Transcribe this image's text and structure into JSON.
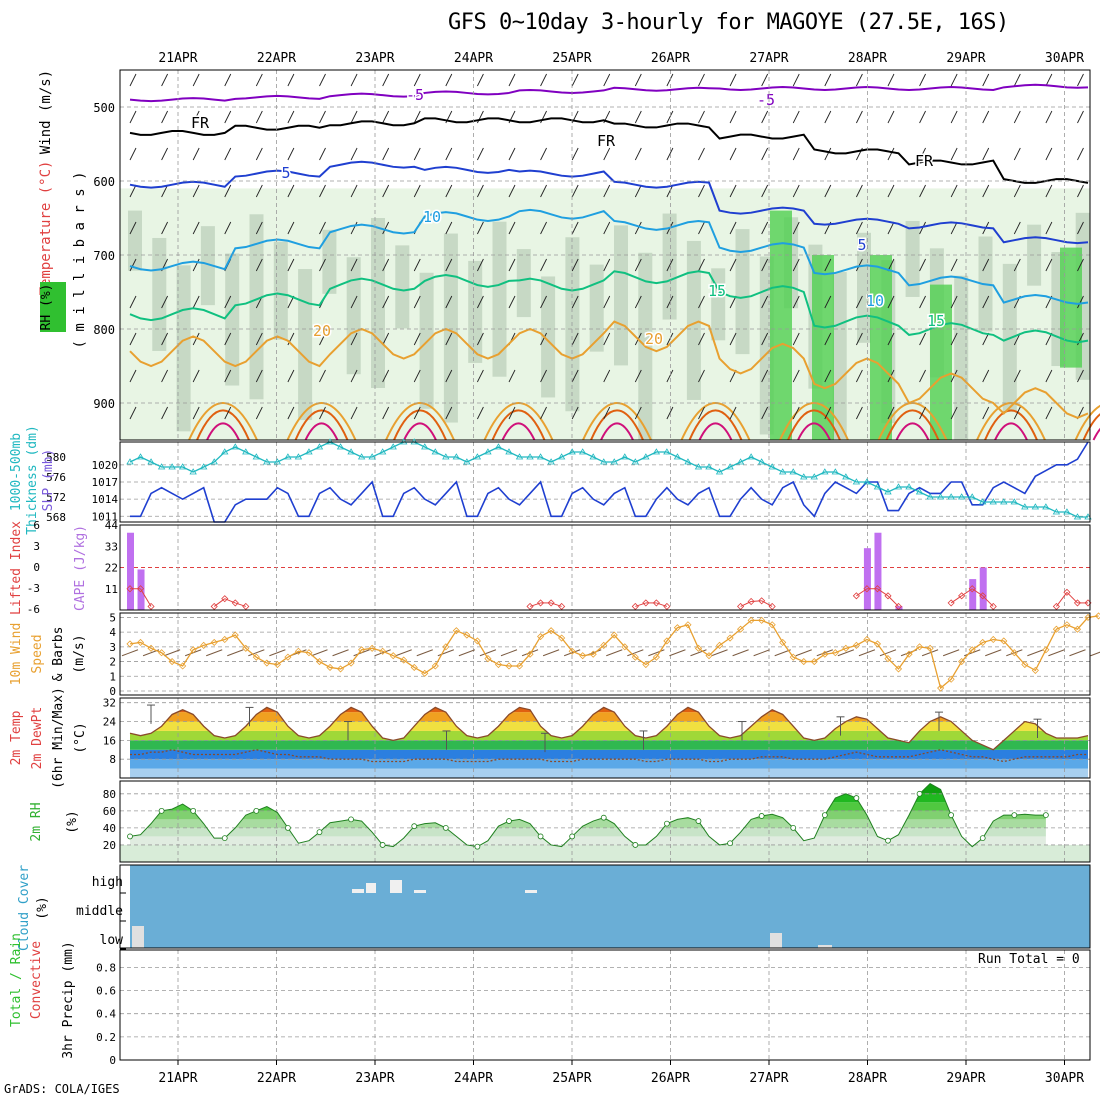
{
  "title": "GFS 0~10day 3-hourly for MAGOYE (27.5E, 16S)",
  "footer": "GrADS: COLA/IGES",
  "dates": [
    "21APR",
    "22APR",
    "23APR",
    "24APR",
    "25APR",
    "26APR",
    "27APR",
    "28APR",
    "29APR",
    "30APR"
  ],
  "colors": {
    "purple": "#8000c0",
    "black": "#000000",
    "blue": "#1f3fd0",
    "lightblue": "#1f9fe0",
    "teal": "#10c080",
    "orange": "#e8a030",
    "darkorange": "#e06010",
    "magenta": "#d0107a",
    "cyan": "#20b8c0",
    "slpblue": "#1f3fd0",
    "cape": "#c070f0",
    "li": "#e04040",
    "wind": "#e8a030",
    "rh": "#30c830",
    "cloud": "#6aaed6"
  },
  "chart_data": [
    {
      "type": "heatmap",
      "name_label": "upper-air",
      "ylabel_wind": "Wind (m/s)",
      "ylabel_temp": "Temperature (°C)",
      "ylabel_rh": "RH (%)",
      "ylabel_p": "( m i l l i b a r s )",
      "yticks": [
        500,
        600,
        700,
        800,
        900
      ],
      "ylim": [
        450,
        950
      ],
      "isotherm_labels": [
        "-5",
        "FR",
        "5",
        "10",
        "15",
        "20"
      ]
    },
    {
      "type": "line",
      "name_label": "thickness-slp",
      "ylabel_left": "Thickness (dm)",
      "ylabel_left_prefix": "1000-500mb",
      "ylabel_right": "SLP (mb)",
      "ticks_left": [
        580,
        576,
        572,
        568
      ],
      "ticks_right": [
        1020,
        1017,
        1014,
        1011
      ],
      "ylim_slp": [
        1010,
        1024
      ],
      "ylim_thk": [
        567,
        583
      ],
      "series": [
        {
          "name": "SLP",
          "values": [
            1011,
            1011,
            1015,
            1016,
            1015,
            1014,
            1015,
            1016,
            1010,
            1010,
            1013,
            1014,
            1014,
            1014,
            1016,
            1015,
            1011,
            1011,
            1015,
            1016,
            1014,
            1013,
            1015,
            1017,
            1011,
            1011,
            1015,
            1016,
            1014,
            1013,
            1015,
            1017,
            1011,
            1011,
            1015,
            1016,
            1014,
            1013,
            1015,
            1017,
            1011,
            1011,
            1015,
            1016,
            1014,
            1013,
            1015,
            1016,
            1011,
            1011,
            1014,
            1016,
            1014,
            1013,
            1015,
            1016,
            1011,
            1011,
            1014,
            1016,
            1014,
            1013,
            1016,
            1017,
            1013,
            1011,
            1015,
            1017,
            1016,
            1015,
            1017,
            1017,
            1012,
            1012,
            1015,
            1016,
            1015,
            1015,
            1017,
            1017,
            1013,
            1013,
            1016,
            1017,
            1016,
            1015,
            1018,
            1019,
            1020,
            1020,
            1021,
            1024
          ]
        },
        {
          "name": "Thickness",
          "values": [
            579,
            580,
            579,
            578,
            578,
            578,
            577,
            578,
            579,
            581,
            582,
            581,
            580,
            579,
            579,
            580,
            580,
            581,
            582,
            583,
            582,
            581,
            580,
            580,
            581,
            582,
            583,
            583,
            582,
            581,
            580,
            580,
            579,
            580,
            581,
            582,
            581,
            580,
            580,
            580,
            579,
            580,
            581,
            581,
            580,
            579,
            579,
            580,
            579,
            580,
            581,
            581,
            580,
            579,
            578,
            578,
            577,
            578,
            579,
            580,
            579,
            578,
            577,
            577,
            576,
            576,
            577,
            577,
            576,
            575,
            575,
            574,
            573,
            574,
            574,
            573,
            572,
            572,
            572,
            572,
            572,
            571,
            571,
            571,
            571,
            570,
            570,
            570,
            569,
            569,
            568,
            568
          ]
        }
      ]
    },
    {
      "type": "bar",
      "name_label": "cape-li",
      "ylabel_left": "Lifted Index",
      "ylabel_right": "CAPE (J/kg)",
      "ticks_left": [
        "6",
        "3",
        "0",
        "-3",
        "-6"
      ],
      "ticks_right": [
        44,
        33,
        22,
        11
      ],
      "cape_bars": [
        {
          "i": 0,
          "v": 40
        },
        {
          "i": 1,
          "v": 21
        },
        {
          "i": 70,
          "v": 32
        },
        {
          "i": 71,
          "v": 40
        },
        {
          "i": 73,
          "v": 2
        },
        {
          "i": 80,
          "v": 16
        },
        {
          "i": 81,
          "v": 22
        }
      ],
      "li_points": [
        {
          "i": 0,
          "v": 3
        },
        {
          "i": 1,
          "v": 3
        },
        {
          "i": 2,
          "v": 5.5
        },
        {
          "i": 8,
          "v": 5.5
        },
        {
          "i": 9,
          "v": 4.4
        },
        {
          "i": 10,
          "v": 5
        },
        {
          "i": 11,
          "v": 5.5
        },
        {
          "i": 38,
          "v": 5.5
        },
        {
          "i": 39,
          "v": 5
        },
        {
          "i": 40,
          "v": 5
        },
        {
          "i": 41,
          "v": 5.5
        },
        {
          "i": 48,
          "v": 5.5
        },
        {
          "i": 49,
          "v": 5
        },
        {
          "i": 50,
          "v": 5
        },
        {
          "i": 51,
          "v": 5.5
        },
        {
          "i": 58,
          "v": 5.5
        },
        {
          "i": 59,
          "v": 4.8
        },
        {
          "i": 60,
          "v": 4.7
        },
        {
          "i": 61,
          "v": 5.5
        },
        {
          "i": 69,
          "v": 4
        },
        {
          "i": 70,
          "v": 3
        },
        {
          "i": 71,
          "v": 3
        },
        {
          "i": 72,
          "v": 4
        },
        {
          "i": 73,
          "v": 5.5
        },
        {
          "i": 78,
          "v": 5
        },
        {
          "i": 79,
          "v": 4
        },
        {
          "i": 80,
          "v": 3
        },
        {
          "i": 81,
          "v": 4
        },
        {
          "i": 82,
          "v": 5.5
        },
        {
          "i": 88,
          "v": 5.5
        },
        {
          "i": 89,
          "v": 3.5
        },
        {
          "i": 90,
          "v": 5
        },
        {
          "i": 91,
          "v": 5
        }
      ]
    },
    {
      "type": "line",
      "name_label": "wind10m",
      "ylabel": "10m Wind Speed (m/s) & Barbs",
      "ylabel_lines": [
        "10m Wind",
        "Speed",
        "& Barbs",
        "(m/s)"
      ],
      "ticks": [
        5,
        4,
        3,
        2,
        1,
        0
      ],
      "ylim": [
        0,
        5.3
      ],
      "values": [
        3.2,
        3.3,
        2.9,
        2.6,
        2.0,
        1.7,
        2.8,
        3.1,
        3.3,
        3.5,
        3.8,
        2.9,
        2.3,
        1.9,
        1.8,
        2.3,
        2.7,
        2.6,
        2.0,
        1.6,
        1.5,
        1.9,
        2.8,
        2.9,
        2.7,
        2.4,
        2.1,
        1.6,
        1.2,
        1.7,
        3.0,
        4.1,
        3.8,
        3.4,
        2.2,
        1.8,
        1.7,
        1.7,
        2.5,
        3.7,
        4.1,
        3.6,
        2.7,
        2.4,
        2.5,
        3.1,
        3.8,
        3.0,
        2.3,
        1.8,
        2.3,
        3.4,
        4.3,
        4.5,
        2.9,
        2.4,
        3.1,
        3.6,
        4.2,
        4.8,
        4.8,
        4.5,
        3.3,
        2.3,
        2.0,
        2.0,
        2.5,
        2.6,
        2.9,
        3.1,
        3.5,
        3.2,
        2.2,
        1.5,
        2.5,
        3.0,
        2.9,
        0.2,
        0.8,
        2.0,
        2.8,
        3.3,
        3.5,
        3.4,
        2.6,
        1.8,
        1.4,
        2.8,
        4.2,
        4.5,
        4.2,
        5.0,
        5.1
      ]
    },
    {
      "type": "area",
      "name_label": "temp2m",
      "ylabel_lines": [
        "2m Temp",
        "2m DewPt",
        "(6hr Min/Max)"
      ],
      "ylabel_unit": "(°C)",
      "ticks": [
        32,
        24,
        16,
        8
      ],
      "ylim": [
        0,
        34
      ],
      "temp": [
        19,
        18,
        19,
        22,
        27,
        29,
        27,
        22,
        18,
        17,
        18,
        22,
        27,
        30,
        28,
        22,
        18,
        17,
        18,
        22,
        27,
        30,
        28,
        22,
        17,
        16,
        17,
        22,
        27,
        30,
        28,
        22,
        18,
        17,
        18,
        22,
        27,
        30,
        29,
        22,
        18,
        17,
        18,
        22,
        27,
        30,
        28,
        22,
        18,
        17,
        18,
        22,
        27,
        30,
        28,
        22,
        18,
        17,
        18,
        22,
        26,
        29,
        27,
        22,
        17,
        16,
        17,
        21,
        24,
        26,
        25,
        21,
        17,
        16,
        15,
        20,
        24,
        26,
        24,
        20,
        16,
        14,
        12,
        16,
        20,
        24,
        23,
        19,
        17,
        17,
        17,
        18
      ],
      "dew": [
        10,
        10,
        11,
        11,
        12,
        11,
        10,
        10,
        10,
        10,
        10,
        11,
        12,
        11,
        10,
        10,
        9,
        9,
        9,
        8,
        8,
        8,
        8,
        7,
        7,
        7,
        7,
        8,
        8,
        8,
        8,
        7,
        7,
        7,
        7,
        8,
        8,
        8,
        8,
        8,
        7,
        7,
        7,
        8,
        8,
        8,
        8,
        8,
        8,
        7,
        7,
        8,
        8,
        8,
        8,
        7,
        7,
        8,
        8,
        8,
        9,
        9,
        9,
        8,
        8,
        8,
        8,
        9,
        10,
        11,
        10,
        9,
        9,
        9,
        9,
        10,
        11,
        12,
        11,
        10,
        9,
        9,
        8,
        7,
        8,
        9,
        9,
        9,
        9,
        9,
        10,
        10
      ]
    },
    {
      "type": "area",
      "name_label": "rh2m",
      "ylabel": "2m RH",
      "ylabel_unit": "(%)",
      "ticks": [
        80,
        60,
        40,
        20
      ],
      "ylim": [
        0,
        95
      ],
      "values": [
        30,
        32,
        45,
        60,
        62,
        68,
        60,
        45,
        28,
        28,
        40,
        55,
        60,
        65,
        58,
        40,
        22,
        25,
        35,
        46,
        48,
        50,
        48,
        35,
        20,
        18,
        28,
        42,
        45,
        46,
        40,
        30,
        20,
        18,
        25,
        42,
        48,
        50,
        45,
        30,
        20,
        18,
        30,
        42,
        48,
        52,
        45,
        30,
        20,
        20,
        30,
        45,
        50,
        52,
        48,
        30,
        20,
        22,
        35,
        50,
        54,
        56,
        52,
        40,
        25,
        28,
        55,
        75,
        80,
        75,
        55,
        30,
        25,
        32,
        55,
        80,
        92,
        85,
        55,
        30,
        18,
        28,
        48,
        55,
        55,
        56,
        55,
        55
      ]
    },
    {
      "type": "bar",
      "name_label": "cloud",
      "ylabel": "Cloud Cover",
      "ylabel_unit": "(%)",
      "levels": [
        "high",
        "middle",
        "low"
      ]
    },
    {
      "type": "bar",
      "name_label": "precip",
      "ylabel_lines": [
        "Total / Rain",
        "Convective",
        "3hr Precip (mm)"
      ],
      "ticks": [
        "0.8",
        "0.6",
        "0.4",
        "0.2",
        "0"
      ],
      "ylim": [
        0,
        0.95
      ],
      "run_total": "Run Total = 0",
      "values": []
    }
  ]
}
